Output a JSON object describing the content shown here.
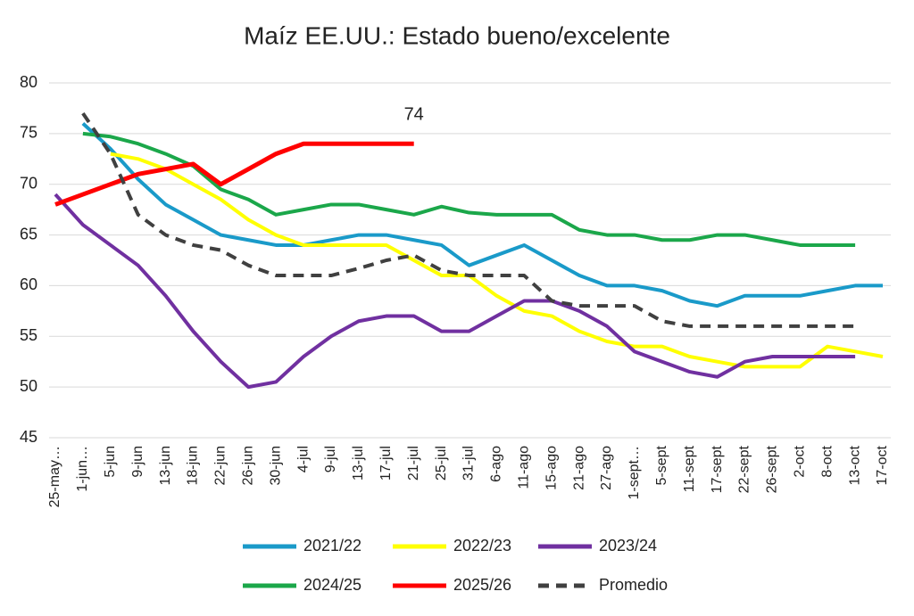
{
  "chart_data": {
    "type": "line",
    "title": "Maíz EE.UU.: Estado bueno/excelente",
    "categories": [
      "25-may…",
      "1-jun…",
      "5-jun",
      "9-jun",
      "13-jun",
      "18-jun",
      "22-jun",
      "26-jun",
      "30-jun",
      "4-jul",
      "9-jul",
      "13-jul",
      "17-jul",
      "21-jul",
      "25-jul",
      "31-jul",
      "6-ago",
      "11-ago",
      "15-ago",
      "21-ago",
      "27-ago",
      "1-sept…",
      "5-sept",
      "11-sept",
      "17-sept",
      "22-sept",
      "26-sept",
      "2-oct",
      "8-oct",
      "13-oct",
      "17-oct"
    ],
    "series": [
      {
        "name": "2021/22",
        "color": "#1a9ac9",
        "values": [
          null,
          76,
          73.5,
          70.5,
          68,
          66.5,
          65,
          64.5,
          64,
          64,
          64.5,
          65,
          65,
          64.5,
          64,
          62,
          63,
          64,
          62.5,
          61,
          60,
          60,
          59.5,
          58.5,
          58,
          59,
          59,
          59,
          59.5,
          60,
          60
        ]
      },
      {
        "name": "2022/23",
        "color": "#ffff00",
        "values": [
          null,
          null,
          73,
          72.5,
          71.5,
          70,
          68.5,
          66.5,
          65,
          64,
          64,
          64,
          64,
          62.5,
          61,
          61,
          59,
          57.5,
          57,
          55.5,
          54.5,
          54,
          54,
          53,
          52.5,
          52,
          52,
          52,
          54,
          53.5,
          53
        ]
      },
      {
        "name": "2023/24",
        "color": "#7030a0",
        "values": [
          69,
          66,
          64,
          62,
          59,
          55.5,
          52.5,
          50,
          50.5,
          53,
          55,
          56.5,
          57,
          57,
          55.5,
          55.5,
          57,
          58.5,
          58.5,
          57.5,
          56,
          53.5,
          52.5,
          51.5,
          51,
          52.5,
          53,
          53,
          53,
          53,
          null
        ]
      },
      {
        "name": "2024/25",
        "color": "#1ba74a",
        "values": [
          null,
          75,
          74.7,
          74,
          73,
          71.8,
          69.5,
          68.5,
          67,
          67.5,
          68,
          68,
          67.5,
          67,
          67.8,
          67.2,
          67,
          67,
          67,
          65.5,
          65,
          65,
          64.5,
          64.5,
          65,
          65,
          64.5,
          64,
          64,
          64,
          null
        ]
      },
      {
        "name": "2025/26",
        "color": "#ff0000",
        "values": [
          68,
          69,
          70,
          71,
          71.5,
          72,
          70,
          71.5,
          73,
          74,
          74,
          74,
          74,
          74,
          null,
          null,
          null,
          null,
          null,
          null,
          null,
          null,
          null,
          null,
          null,
          null,
          null,
          null,
          null,
          null,
          null
        ]
      },
      {
        "name": "Promedio",
        "color": "#404040",
        "dashed": true,
        "values": [
          null,
          77,
          73,
          67,
          65,
          64,
          63.5,
          62,
          61,
          61,
          61,
          61.7,
          62.5,
          63,
          61.5,
          61,
          61,
          61,
          58.5,
          58,
          58,
          58,
          56.5,
          56,
          56,
          56,
          56,
          56,
          56,
          56,
          null
        ]
      }
    ],
    "annotations": [
      {
        "text": "74",
        "series": 4,
        "index": 13
      }
    ],
    "ylim": [
      45,
      80
    ],
    "yticks": [
      45,
      50,
      55,
      60,
      65,
      70,
      75,
      80
    ],
    "grid": true
  }
}
